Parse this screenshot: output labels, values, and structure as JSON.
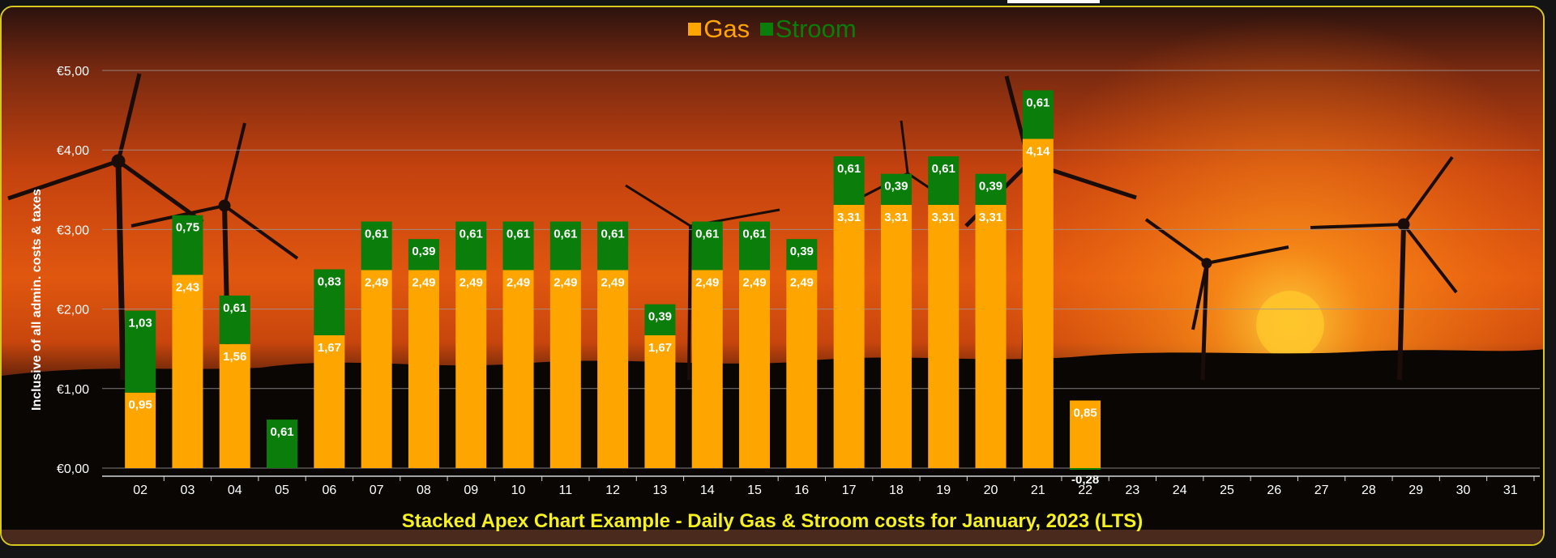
{
  "chart_data": {
    "type": "bar",
    "stacked": true,
    "title": "Stacked Apex Chart Example - Daily Gas & Stroom costs for January, 2023 (LTS)",
    "xlabel": "",
    "ylabel": "Inclusive of all admin. costs & taxes",
    "ylim": [
      0,
      5
    ],
    "yticks": [
      "€0,00",
      "€1,00",
      "€2,00",
      "€3,00",
      "€4,00",
      "€5,00"
    ],
    "grid": true,
    "legend_position": "top-center",
    "categories": [
      "02",
      "03",
      "04",
      "05",
      "06",
      "07",
      "08",
      "09",
      "10",
      "11",
      "12",
      "13",
      "14",
      "15",
      "16",
      "17",
      "18",
      "19",
      "20",
      "21",
      "22",
      "23",
      "24",
      "25",
      "26",
      "27",
      "28",
      "29",
      "30",
      "31"
    ],
    "series": [
      {
        "name": "Gas",
        "color": "#ffa500",
        "values": [
          0.95,
          2.43,
          1.56,
          0,
          1.67,
          2.49,
          2.49,
          2.49,
          2.49,
          2.49,
          2.49,
          1.67,
          2.49,
          2.49,
          2.49,
          3.31,
          3.31,
          3.31,
          3.31,
          4.14,
          0.85,
          null,
          null,
          null,
          null,
          null,
          null,
          null,
          null,
          null
        ],
        "labels": [
          "0,95",
          "2,43",
          "1,56",
          "",
          "1,67",
          "2,49",
          "2,49",
          "2,49",
          "2,49",
          "2,49",
          "2,49",
          "1,67",
          "2,49",
          "2,49",
          "2,49",
          "3,31",
          "3,31",
          "3,31",
          "3,31",
          "4,14",
          "0,85",
          "",
          "",
          "",
          "",
          "",
          "",
          "",
          "",
          ""
        ]
      },
      {
        "name": "Stroom",
        "color": "#0a7d0a",
        "values": [
          1.03,
          0.75,
          0.61,
          0.61,
          0.83,
          0.61,
          0.39,
          0.61,
          0.61,
          0.61,
          0.61,
          0.39,
          0.61,
          0.61,
          0.39,
          0.61,
          0.39,
          0.61,
          0.39,
          0.61,
          -0.28,
          null,
          null,
          null,
          null,
          null,
          null,
          null,
          null,
          null
        ],
        "labels": [
          "1,03",
          "0,75",
          "0,61",
          "0,61",
          "0,83",
          "0,61",
          "0,39",
          "0,61",
          "0,61",
          "0,61",
          "0,61",
          "0,39",
          "0,61",
          "0,61",
          "0,39",
          "0,61",
          "0,39",
          "0,61",
          "0,39",
          "0,61",
          "-0,28",
          "",
          "",
          "",
          "",
          "",
          "",
          "",
          "",
          ""
        ]
      }
    ],
    "colors": {
      "gas": "#ffa500",
      "stroom": "#0a7d0a",
      "title": "#f5f01e",
      "grid": "#9a9a9a",
      "border": "#d6c81f"
    }
  }
}
